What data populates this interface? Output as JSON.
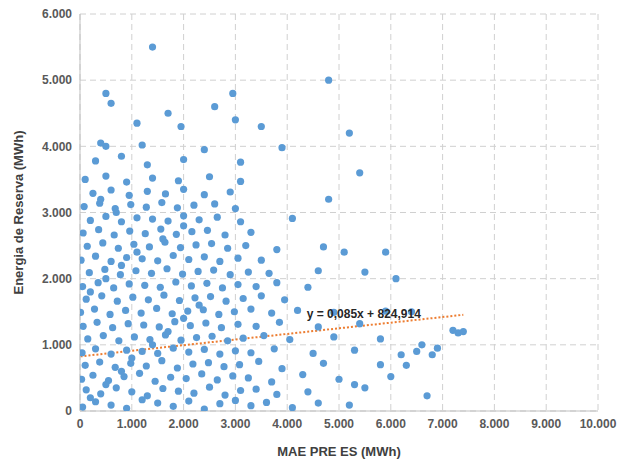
{
  "chart_data": {
    "type": "scatter",
    "x_label": "MAE PRE ES (MWh)",
    "y_label": "Energia de Reserva (MWh)",
    "color": "#5b9bd5",
    "marker": "circle",
    "grid": true,
    "xlim": [
      0,
      10000
    ],
    "xticks": [
      0,
      {
        "value": 1000,
        "label": "1.000"
      },
      {
        "value": 2000,
        "label": "2.000"
      },
      {
        "value": 3000,
        "label": "3.000"
      },
      {
        "value": 4000,
        "label": "4.000"
      },
      {
        "value": 5000,
        "label": "5.000"
      },
      {
        "value": 6000,
        "label": "6.000"
      },
      {
        "value": 7000,
        "label": "7.000"
      },
      {
        "value": 8000,
        "label": "8.000"
      },
      {
        "value": 9000,
        "label": "9.000"
      },
      {
        "value": 10000,
        "label": "10.000"
      }
    ],
    "ylim": [
      0,
      6000
    ],
    "yticks": [
      0,
      {
        "value": 1000,
        "label": "1.000"
      },
      {
        "value": 2000,
        "label": "2.000"
      },
      {
        "value": 3000,
        "label": "3.000"
      },
      {
        "value": 4000,
        "label": "4.000"
      },
      {
        "value": 5000,
        "label": "5.000"
      },
      {
        "value": 6000,
        "label": "6.000"
      }
    ],
    "trendline": {
      "slope": 0.085,
      "intercept": 824.914,
      "label": "y = 0,085x + 824,914",
      "color": "#ed7d31",
      "line_style": "dotted"
    },
    "x": [
      50,
      300,
      600,
      900,
      1200,
      1500,
      1800,
      2100,
      2400,
      2700,
      3000,
      3300,
      3600,
      4100,
      4600,
      5200,
      120,
      400,
      700,
      1000,
      1300,
      1600,
      1900,
      2200,
      2500,
      2800,
      3100,
      3400,
      3800,
      4400,
      5500,
      30,
      250,
      550,
      850,
      1150,
      1450,
      1750,
      2050,
      2350,
      2650,
      2950,
      3250,
      3700,
      4300,
      5000,
      6000,
      100,
      380,
      680,
      980,
      1280,
      1580,
      1880,
      2180,
      2480,
      2780,
      3080,
      3450,
      3900,
      4700,
      6300,
      40,
      300,
      600,
      900,
      1200,
      1500,
      1800,
      2100,
      2400,
      2700,
      3000,
      3300,
      3750,
      4500,
      5300,
      6500,
      150,
      450,
      750,
      1050,
      1350,
      1650,
      1950,
      2250,
      2550,
      2850,
      3150,
      3550,
      4050,
      4900,
      5800,
      7300,
      60,
      330,
      630,
      930,
      1230,
      1530,
      1830,
      2130,
      2430,
      2730,
      3050,
      3400,
      3850,
      4600,
      5400,
      10,
      280,
      580,
      880,
      1180,
      1480,
      1780,
      2080,
      2380,
      2680,
      2980,
      3300,
      3700,
      4200,
      4900,
      5900,
      120,
      420,
      720,
      1020,
      1320,
      1620,
      1920,
      2220,
      2520,
      2820,
      3150,
      3500,
      3950,
      50,
      350,
      650,
      950,
      1250,
      1550,
      1850,
      2150,
      2450,
      2750,
      3050,
      3400,
      3800,
      4400,
      180,
      480,
      780,
      1080,
      1380,
      1680,
      1980,
      2280,
      2580,
      2900,
      3250,
      3650,
      4600,
      20,
      300,
      600,
      900,
      1200,
      1500,
      1800,
      2100,
      2400,
      2700,
      3050,
      3500,
      140,
      440,
      740,
      1040,
      1340,
      1640,
      1940,
      2240,
      2540,
      2850,
      3200,
      3800,
      4700,
      60,
      360,
      660,
      960,
      1260,
      1560,
      1860,
      2160,
      2460,
      2800,
      3300,
      200,
      500,
      800,
      1100,
      1400,
      1700,
      2000,
      2300,
      2650,
      3100,
      4100,
      80,
      380,
      680,
      980,
      1280,
      1580,
      1880,
      2200,
      2600,
      3000,
      250,
      600,
      950,
      1300,
      1650,
      2000,
      2400,
      2900,
      100,
      500,
      900,
      1400,
      1900,
      2500,
      3100,
      300,
      800,
      1300,
      2000,
      3100,
      500,
      1200,
      2400,
      3900,
      1400,
      4800,
      500,
      600,
      2950,
      1700,
      2600,
      3500,
      1100,
      5200,
      1950,
      400,
      3000,
      5400,
      6800,
      7400,
      7200,
      6700,
      6600,
      5300,
      5800,
      6200,
      4800,
      5100,
      5500,
      5900,
      6100,
      6400,
      6900,
      200,
      500,
      800,
      1000,
      1400,
      1700,
      2000,
      2300,
      200,
      500,
      800,
      1100,
      1600,
      2000,
      700,
      400
    ],
    "values": [
      60,
      140,
      90,
      40,
      170,
      120,
      70,
      150,
      30,
      110,
      160,
      80,
      130,
      50,
      120,
      90,
      320,
      260,
      350,
      290,
      230,
      340,
      300,
      270,
      360,
      240,
      310,
      330,
      250,
      290,
      350,
      480,
      540,
      460,
      520,
      570,
      450,
      510,
      490,
      560,
      470,
      530,
      500,
      440,
      550,
      480,
      520,
      690,
      740,
      660,
      720,
      680,
      760,
      650,
      710,
      730,
      670,
      700,
      750,
      640,
      720,
      690,
      880,
      940,
      860,
      920,
      900,
      870,
      950,
      890,
      930,
      860,
      910,
      880,
      940,
      870,
      920,
      900,
      1090,
      1140,
      1060,
      1120,
      1080,
      1150,
      1070,
      1110,
      1130,
      1060,
      1100,
      1140,
      1080,
      1120,
      1090,
      1180,
      1280,
      1340,
      1260,
      1320,
      1300,
      1270,
      1350,
      1290,
      1330,
      1260,
      1310,
      1280,
      1340,
      1270,
      1320,
      1490,
      1540,
      1460,
      1520,
      1480,
      1550,
      1470,
      1510,
      1530,
      1460,
      1500,
      1540,
      1480,
      1520,
      1490,
      1510,
      1690,
      1740,
      1660,
      1720,
      1680,
      1750,
      1670,
      1710,
      1730,
      1660,
      1700,
      1740,
      1680,
      1880,
      1940,
      1860,
      1920,
      1900,
      1870,
      1950,
      1890,
      1930,
      1860,
      1910,
      1880,
      1940,
      1870,
      2090,
      2140,
      2060,
      2120,
      2080,
      2150,
      2070,
      2110,
      2130,
      2060,
      2100,
      2080,
      2120,
      2280,
      2340,
      2260,
      2320,
      2300,
      2270,
      2350,
      2290,
      2330,
      2260,
      2310,
      2280,
      2490,
      2540,
      2460,
      2520,
      2480,
      2550,
      2470,
      2510,
      2530,
      2460,
      2500,
      2440,
      2480,
      2690,
      2740,
      2660,
      2720,
      2680,
      2750,
      2670,
      2710,
      2730,
      2660,
      2700,
      2880,
      2940,
      2860,
      2920,
      2900,
      2870,
      2950,
      2890,
      2930,
      2860,
      2910,
      3090,
      3140,
      3060,
      3120,
      3080,
      3150,
      3070,
      3110,
      3130,
      3060,
      3290,
      3340,
      3260,
      3320,
      3280,
      3350,
      3270,
      3310,
      3500,
      3550,
      3460,
      3520,
      3480,
      3540,
      3470,
      3780,
      3850,
      3720,
      3800,
      3760,
      4000,
      4020,
      3950,
      3980,
      5500,
      5000,
      4800,
      4650,
      4800,
      4500,
      4600,
      4300,
      4350,
      4200,
      4300,
      4050,
      4400,
      3600,
      850,
      1200,
      1220,
      230,
      1000,
      400,
      700,
      850,
      3200,
      2400,
      2100,
      2400,
      2000,
      1500,
      950,
      200,
      400,
      600,
      800,
      1000,
      1200,
      1400,
      1600,
      1800,
      2000,
      2200,
      2400,
      2600,
      2800,
      3000,
      3200
    ]
  }
}
